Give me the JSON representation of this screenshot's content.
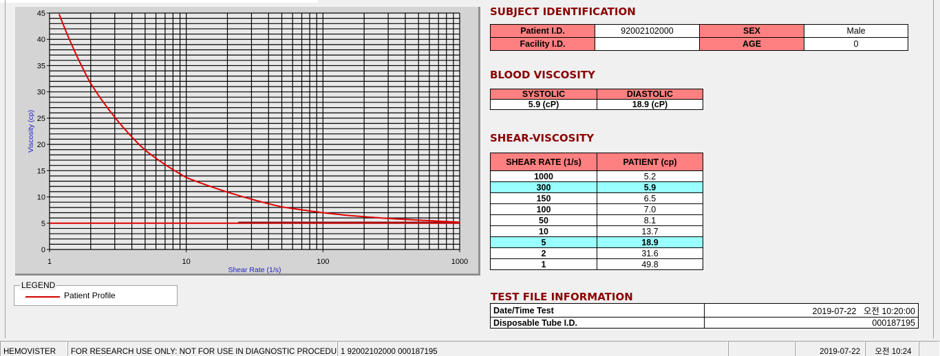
{
  "subject": {
    "heading": "SUBJECT IDENTIFICATION",
    "patient_id_label": "Patient I.D.",
    "patient_id": "92002102000",
    "sex_label": "SEX",
    "sex": "Male",
    "facility_label": "Facility I.D.",
    "facility": "",
    "age_label": "AGE",
    "age": "0"
  },
  "blood": {
    "heading": "BLOOD VISCOSITY",
    "systolic_label": "SYSTOLIC",
    "diastolic_label": "DIASTOLIC",
    "systolic": "5.9 (cP)",
    "diastolic": "18.9 (cP)"
  },
  "shear": {
    "heading": "SHEAR-VISCOSITY",
    "col1": "SHEAR RATE (1/s)",
    "col2": "PATIENT (cp)",
    "rows": [
      {
        "rate": "1000",
        "val": "5.2"
      },
      {
        "rate": "300",
        "val": "5.9",
        "hl": true
      },
      {
        "rate": "150",
        "val": "6.5"
      },
      {
        "rate": "100",
        "val": "7.0"
      },
      {
        "rate": "50",
        "val": "8.1"
      },
      {
        "rate": "10",
        "val": "13.7"
      },
      {
        "rate": "5",
        "val": "18.9",
        "hl": true
      },
      {
        "rate": "2",
        "val": "31.6"
      },
      {
        "rate": "1",
        "val": "49.8"
      }
    ]
  },
  "file": {
    "heading": "TEST FILE INFORMATION",
    "date_label": "Date/Time Test",
    "date": "2019-07-22   오전 10:20:00",
    "tube_label": "Disposable Tube I.D.",
    "tube": "000187195"
  },
  "legend": {
    "title": "LEGEND",
    "item": "Patient Profile"
  },
  "status": {
    "app": "HEMOVISTER",
    "notice": "FOR RESEARCH USE ONLY: NOT FOR USE IN DIAGNOSTIC PROCEDURES",
    "record": "1  92002102000  000187195",
    "blank": "",
    "date": "2019-07-22",
    "time": "오전 10:24"
  },
  "colors": {
    "curve": "#e00000",
    "header_cell": "#ff8080",
    "highlight": "#99ffff",
    "heading": "#8b0000"
  },
  "chart_data": {
    "type": "line",
    "xlabel": "Shear Rate (1/s)",
    "ylabel": "Viscosity (cp)",
    "x_scale": "log",
    "xlim": [
      1,
      1000
    ],
    "ylim": [
      0,
      45
    ],
    "x_ticks": [
      "1",
      "10",
      "100",
      "1000"
    ],
    "y_ticks": [
      "0",
      "5",
      "10",
      "15",
      "20",
      "25",
      "30",
      "35",
      "40",
      "45"
    ],
    "grid": true,
    "series": [
      {
        "name": "Patient Profile",
        "x": [
          1,
          2,
          5,
          10,
          50,
          100,
          150,
          300,
          1000
        ],
        "y": [
          49.8,
          31.6,
          18.9,
          13.7,
          8.1,
          7.0,
          6.5,
          5.9,
          5.2
        ]
      }
    ],
    "reference_line": {
      "y": 5
    }
  }
}
